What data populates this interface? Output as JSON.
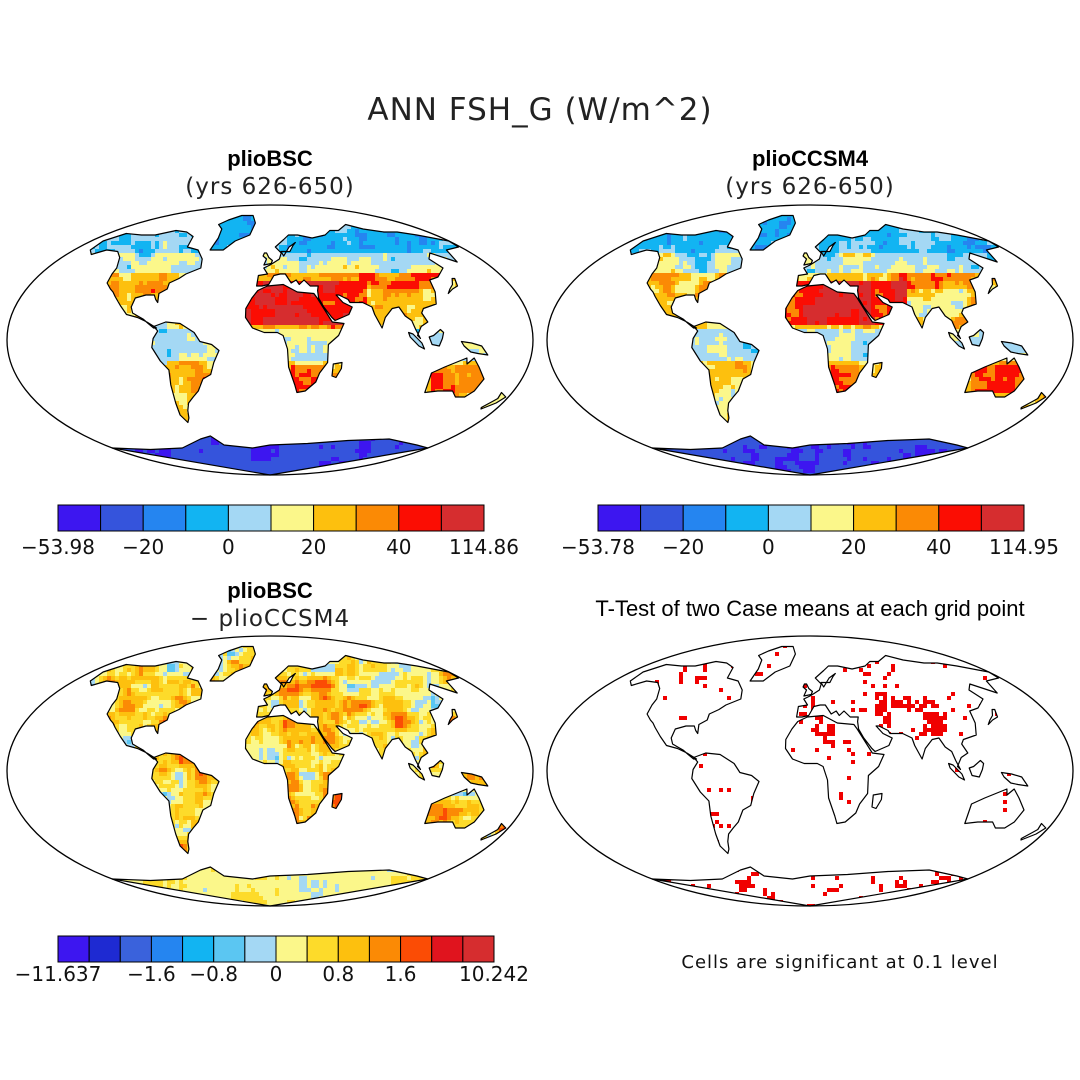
{
  "title": "ANN FSH_G (W/m^2)",
  "panels": [
    {
      "id": "p1",
      "title": "plioBSC",
      "subtitle": "(yrs 626-650)",
      "colorbar": {
        "colors": [
          "#3d16f0",
          "#3554dc",
          "#2585f0",
          "#12b4f2",
          "#a4d8f4",
          "#fbf78a",
          "#fdc00e",
          "#fb8a05",
          "#fb0d03",
          "#d62d2f"
        ],
        "labels": [
          "−53.98",
          "−20",
          "0",
          "20",
          "40",
          "114.86"
        ]
      }
    },
    {
      "id": "p2",
      "title": "plioCCSM4",
      "subtitle": "(yrs 626-650)",
      "colorbar": {
        "colors": [
          "#3d16f0",
          "#3554dc",
          "#2585f0",
          "#12b4f2",
          "#a4d8f4",
          "#fbf78a",
          "#fdc00e",
          "#fb8a05",
          "#fb0d03",
          "#d62d2f"
        ],
        "labels": [
          "−53.78",
          "−20",
          "0",
          "20",
          "40",
          "114.95"
        ]
      }
    },
    {
      "id": "p3",
      "title": "plioBSC",
      "subtitle": "− plioCCSM4",
      "colorbar": {
        "colors": [
          "#3d16f0",
          "#1e2ad2",
          "#3a62dc",
          "#2585f0",
          "#12b4f2",
          "#5bc6f2",
          "#a4d8f4",
          "#fbf78a",
          "#fddb2a",
          "#fdc00e",
          "#fb8a05",
          "#fb4c05",
          "#e0141e",
          "#d62d2f"
        ],
        "labels": [
          "−11.637",
          "−1.6",
          "−0.8",
          "0",
          "0.8",
          "1.6",
          "10.242"
        ]
      }
    },
    {
      "id": "p4",
      "title": "T-Test of two Case means at each grid point",
      "subtitle": "",
      "note": "Cells are significant at 0.1 level"
    }
  ]
}
